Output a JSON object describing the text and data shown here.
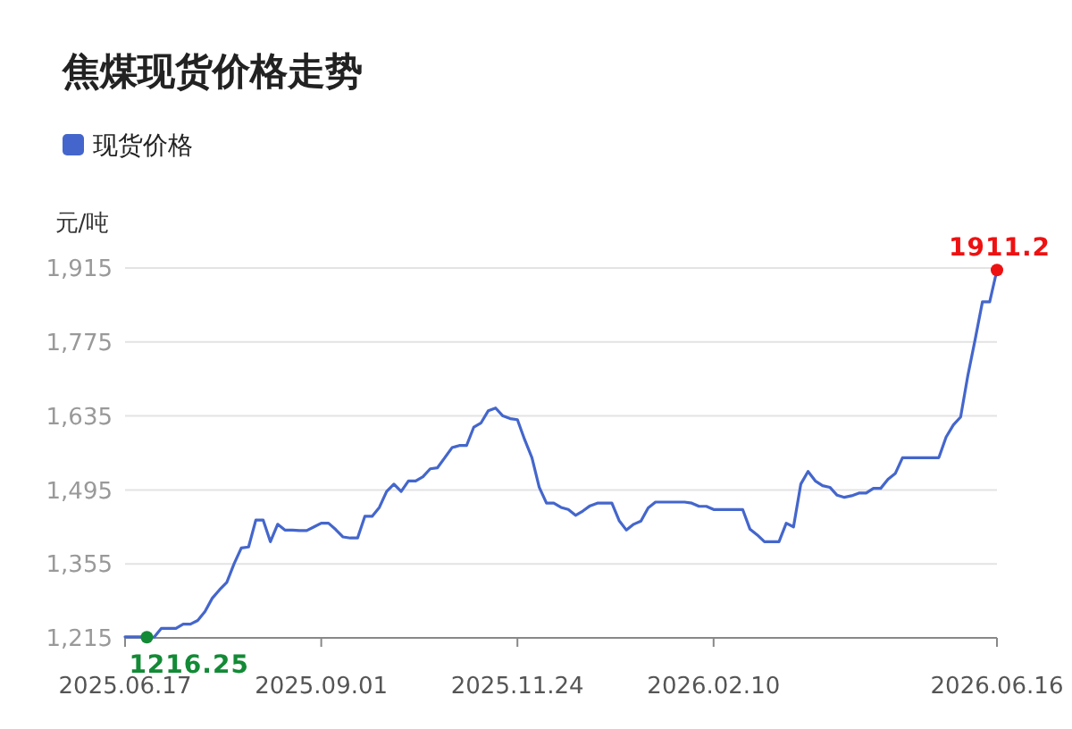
{
  "chart_data": {
    "type": "line",
    "title": "焦煤现货价格走势",
    "ylabel": "元/吨",
    "categories": [
      "2025.06.17",
      null,
      null,
      null,
      null,
      null,
      null,
      null,
      null,
      null,
      null,
      null,
      null,
      null,
      null,
      null,
      null,
      null,
      null,
      null,
      null,
      null,
      null,
      null,
      null,
      null,
      null,
      "2025.09.01",
      null,
      null,
      null,
      null,
      null,
      null,
      null,
      null,
      null,
      null,
      null,
      null,
      null,
      null,
      null,
      null,
      null,
      null,
      null,
      null,
      null,
      null,
      null,
      null,
      null,
      null,
      "2025.11.24",
      null,
      null,
      null,
      null,
      null,
      null,
      null,
      null,
      null,
      null,
      null,
      null,
      null,
      null,
      null,
      null,
      null,
      null,
      null,
      null,
      null,
      null,
      null,
      null,
      null,
      null,
      "2026.02.10",
      null,
      null,
      null,
      null,
      null,
      null,
      null,
      null,
      null,
      null,
      null,
      null,
      null,
      null,
      null,
      null,
      null,
      null,
      null,
      null,
      null,
      null,
      null,
      null,
      null,
      null,
      null,
      null,
      null,
      null,
      null,
      null,
      null,
      null,
      null,
      null,
      null,
      null,
      "2026.06.16"
    ],
    "series": [
      {
        "name": "现货价格",
        "color": "#4466cc",
        "values": [
          1217,
          1217,
          1217,
          1216.25,
          1216.25,
          1233,
          1233,
          1233,
          1241,
          1241,
          1248,
          1265,
          1290,
          1306,
          1320,
          1355,
          1385,
          1387,
          1438,
          1438,
          1397,
          1430,
          1419,
          1419,
          1418,
          1418,
          1425,
          1432,
          1432,
          1420,
          1406,
          1404,
          1404,
          1445,
          1445,
          1462,
          1492,
          1506,
          1492,
          1512,
          1512,
          1520,
          1535,
          1537,
          1556,
          1575,
          1579,
          1579,
          1614,
          1622,
          1645,
          1650,
          1635,
          1630,
          1628,
          1590,
          1556,
          1500,
          1470,
          1470,
          1462,
          1458,
          1447,
          1455,
          1465,
          1470,
          1470,
          1470,
          1437,
          1419,
          1430,
          1436,
          1461,
          1472,
          1472,
          1472,
          1472,
          1472,
          1470,
          1464,
          1464,
          1458,
          1458,
          1458,
          1458,
          1458,
          1421,
          1410,
          1397,
          1397,
          1397,
          1432,
          1425,
          1506,
          1530,
          1512,
          1503,
          1500,
          1485,
          1481,
          1484,
          1489,
          1489,
          1498,
          1498,
          1515,
          1526,
          1556,
          1556,
          1556,
          1556,
          1556,
          1556,
          1595,
          1618,
          1633,
          1712,
          1780,
          1851,
          1851,
          1911.2
        ],
        "value_labels": [
          null,
          null,
          null,
          "1216.25",
          null,
          null,
          null,
          null,
          null,
          null,
          null,
          null,
          null,
          null,
          null,
          null,
          null,
          null,
          null,
          null,
          null,
          null,
          null,
          null,
          null,
          null,
          null,
          null,
          null,
          null,
          null,
          null,
          null,
          null,
          null,
          null,
          null,
          null,
          null,
          null,
          null,
          null,
          null,
          null,
          null,
          null,
          null,
          null,
          null,
          null,
          null,
          null,
          null,
          null,
          null,
          null,
          null,
          null,
          null,
          null,
          null,
          null,
          null,
          null,
          null,
          null,
          null,
          null,
          null,
          null,
          null,
          null,
          null,
          null,
          null,
          null,
          null,
          null,
          null,
          null,
          null,
          null,
          null,
          null,
          null,
          null,
          null,
          null,
          null,
          null,
          null,
          null,
          null,
          null,
          null,
          null,
          null,
          null,
          null,
          null,
          null,
          null,
          null,
          null,
          null,
          null,
          null,
          null,
          null,
          null,
          null,
          null,
          null,
          null,
          null,
          null,
          null,
          null,
          null,
          null,
          "1911.2"
        ]
      }
    ],
    "ylim": [
      1215,
      1915
    ],
    "yticks": [
      {
        "value": 1215,
        "label": "1,215"
      },
      {
        "value": 1355,
        "label": "1,355"
      },
      {
        "value": 1495,
        "label": "1,495"
      },
      {
        "value": 1635,
        "label": "1,635"
      },
      {
        "value": 1775,
        "label": "1,775"
      },
      {
        "value": 1915,
        "label": "1,915"
      }
    ],
    "grid": "y",
    "legend": "top left",
    "marker": "none",
    "line_style": "solid"
  }
}
